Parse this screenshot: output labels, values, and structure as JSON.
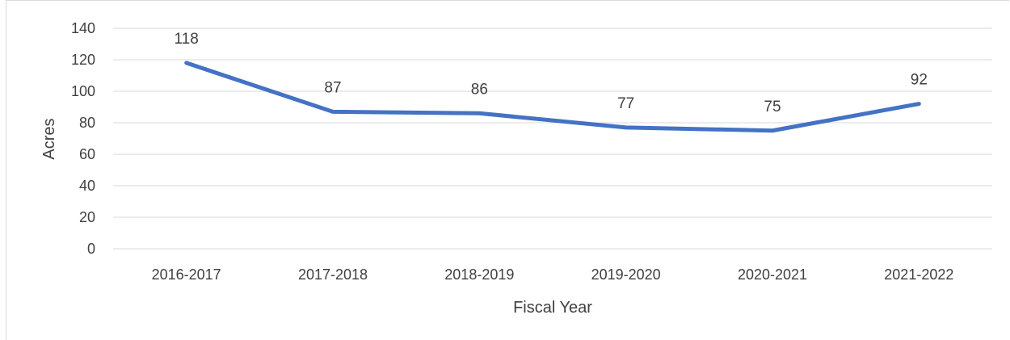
{
  "chart_data": {
    "type": "line",
    "title": "",
    "xlabel": "Fiscal Year",
    "ylabel": "Acres",
    "categories": [
      "2016-2017",
      "2017-2018",
      "2018-2019",
      "2019-2020",
      "2020-2021",
      "2021-2022"
    ],
    "series": [
      {
        "values": [
          118,
          87,
          86,
          77,
          75,
          92
        ],
        "color": "#4472c4",
        "data_labels": [
          "118",
          "87",
          "86",
          "77",
          "75",
          "92"
        ]
      }
    ],
    "ylim": [
      0,
      140
    ],
    "yticks": [
      0,
      20,
      40,
      60,
      80,
      100,
      120,
      140
    ],
    "ytick_labels": [
      "0",
      "20",
      "40",
      "60",
      "80",
      "100",
      "120",
      "140"
    ],
    "grid": true,
    "legend": "none"
  }
}
